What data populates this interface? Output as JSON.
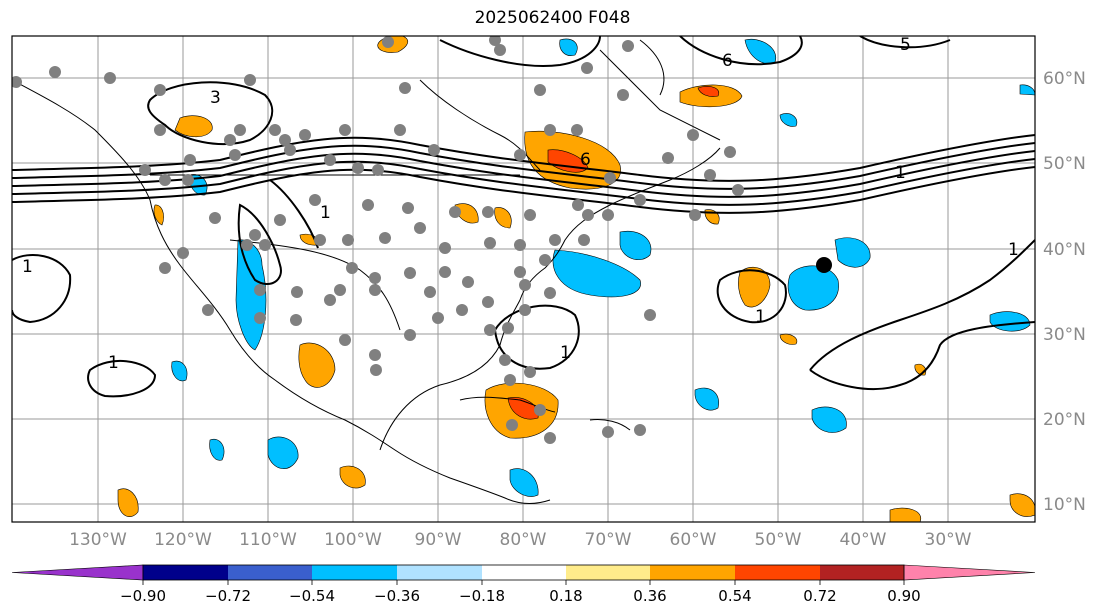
{
  "title": "2025062400 F048",
  "map": {
    "lon_labels": [
      "130°W",
      "120°W",
      "110°W",
      "100°W",
      "90°W",
      "80°W",
      "70°W",
      "60°W",
      "50°W",
      "40°W",
      "30°W"
    ],
    "lat_labels": [
      "60°N",
      "50°N",
      "40°N",
      "30°N",
      "20°N",
      "10°N"
    ],
    "contour_labels": [
      "3",
      "1",
      "1",
      "6",
      "6",
      "5",
      "1",
      "1",
      "1",
      "1",
      "1"
    ]
  },
  "colorbar": {
    "ticks": [
      "−0.90",
      "−0.72",
      "−0.54",
      "−0.36",
      "−0.18",
      "0.18",
      "0.36",
      "0.54",
      "0.72",
      "0.90"
    ],
    "colors": [
      "#9932cc",
      "#00008b",
      "#3a5fcd",
      "#00bfff",
      "#b0e2ff",
      "#ffffff",
      "#ffec8b",
      "#ffa500",
      "#ff4500",
      "#b22222",
      "#ff82ab"
    ]
  }
}
